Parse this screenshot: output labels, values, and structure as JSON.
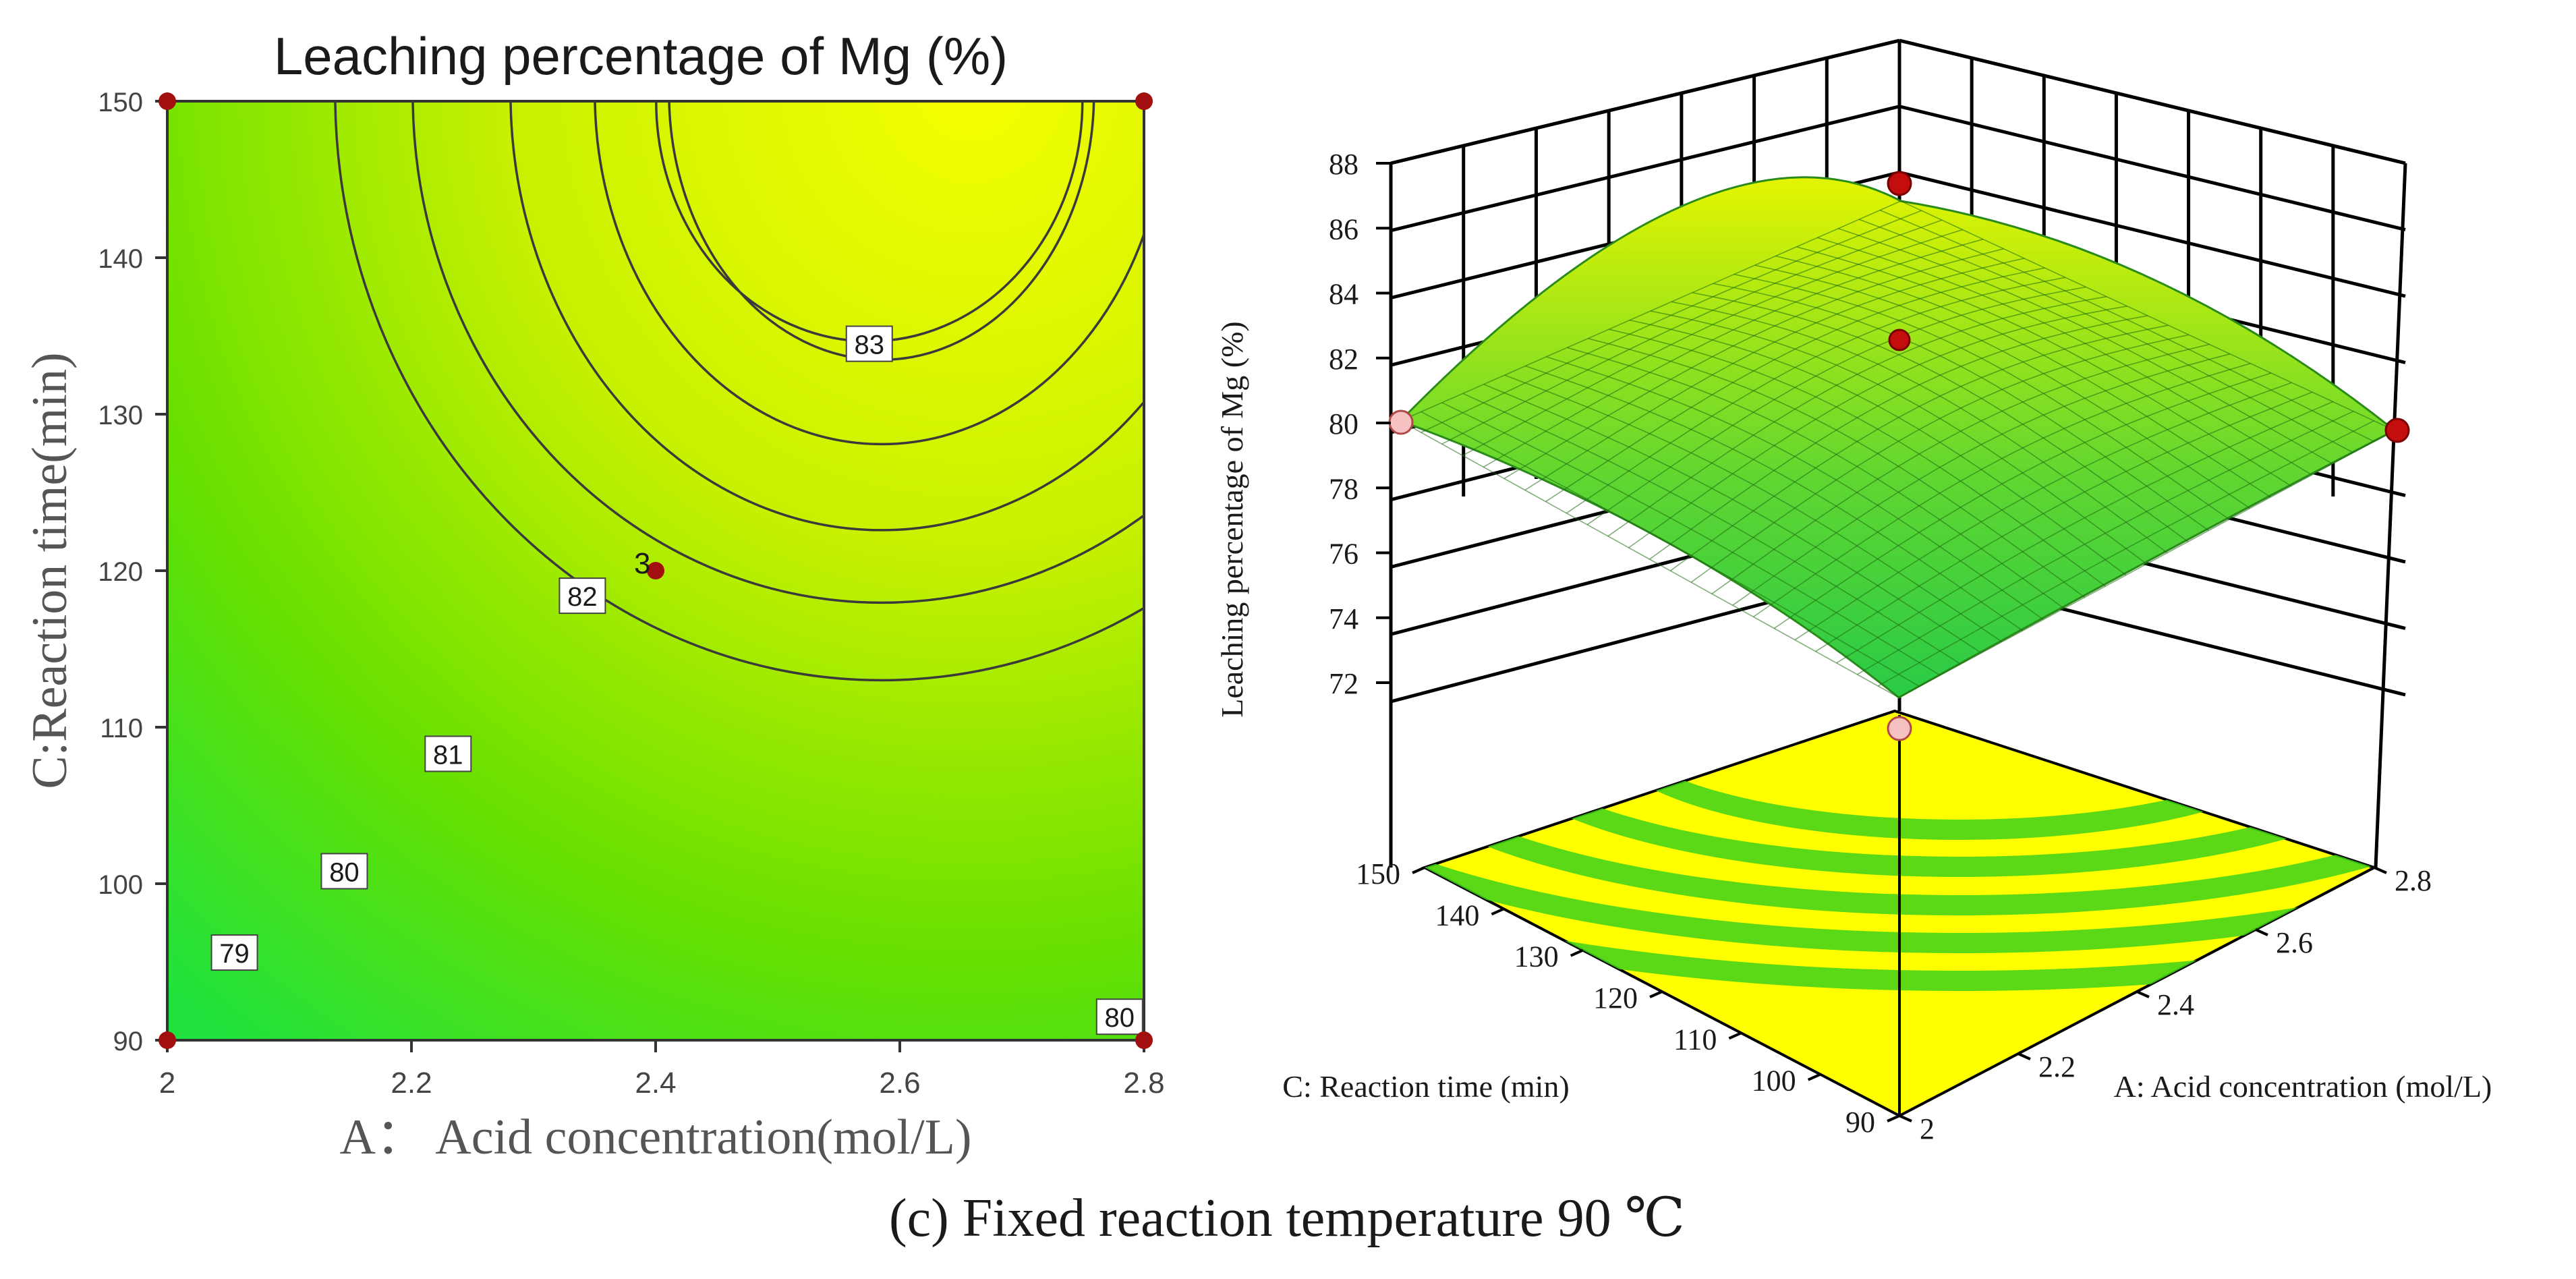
{
  "caption": "(c) Fixed reaction temperature 90 ℃",
  "chart_data": [
    {
      "type": "contour",
      "title": "Leaching percentage of Mg (%)",
      "xlabel": "A： Acid concentration(mol/L)",
      "ylabel": "C:Reaction time(min)",
      "x_ticks": [
        "2",
        "2.2",
        "2.4",
        "2.6",
        "2.8"
      ],
      "y_ticks": [
        "90",
        "100",
        "110",
        "120",
        "130",
        "140",
        "150"
      ],
      "xlim": [
        2,
        2.8
      ],
      "ylim": [
        90,
        150
      ],
      "colors": {
        "low": "#22e23a",
        "high": "#f6ff00",
        "contour_line": "#3a3a3a",
        "design_point": "#a10f0f"
      },
      "contours": [
        {
          "level": "79",
          "label_at": [
            2.055,
            95.6
          ]
        },
        {
          "level": "80",
          "label_at": [
            2.145,
            100.8
          ]
        },
        {
          "level": "81",
          "label_at": [
            2.23,
            108.3
          ]
        },
        {
          "level": "82",
          "label_at": [
            2.34,
            118.4
          ]
        },
        {
          "level": "83",
          "label_at": [
            2.575,
            134.5
          ]
        },
        {
          "level": "80",
          "label_at": [
            2.78,
            91.5
          ]
        }
      ],
      "design_points": [
        [
          2,
          150
        ],
        [
          2.8,
          150
        ],
        [
          2,
          90
        ],
        [
          2.8,
          90
        ],
        [
          2.4,
          120
        ]
      ],
      "center_point_label": "3",
      "center_point": [
        2.4,
        120
      ]
    },
    {
      "type": "surface3d",
      "zlabel": "Leaching percentage of Mg (%)",
      "xlabel": "A: Acid concentration (mol/L)",
      "ylabel": "C: Reaction time (min)",
      "z_ticks": [
        "72",
        "74",
        "76",
        "78",
        "80",
        "82",
        "84",
        "86",
        "88"
      ],
      "zlim": [
        72,
        88
      ],
      "x_ticks": [
        "2",
        "2.2",
        "2.4",
        "2.6",
        "2.8"
      ],
      "y_ticks": [
        "90",
        "100",
        "110",
        "120",
        "130",
        "140",
        "150"
      ],
      "surface_corners": {
        "A2_C90": 72.5,
        "A2.8_C90": 80.0,
        "A2_C150": 80.0,
        "A2.8_C150": 82.0,
        "A2.4_C120": 82.3,
        "peak": 85.9
      },
      "colors": {
        "surface_low": "#2fd23a",
        "surface_high": "#e4f500",
        "floor": "#ffff00",
        "ring": "#3ed21a",
        "point_above": "#c40d0d",
        "point_below": "#f5c1c1"
      }
    }
  ]
}
